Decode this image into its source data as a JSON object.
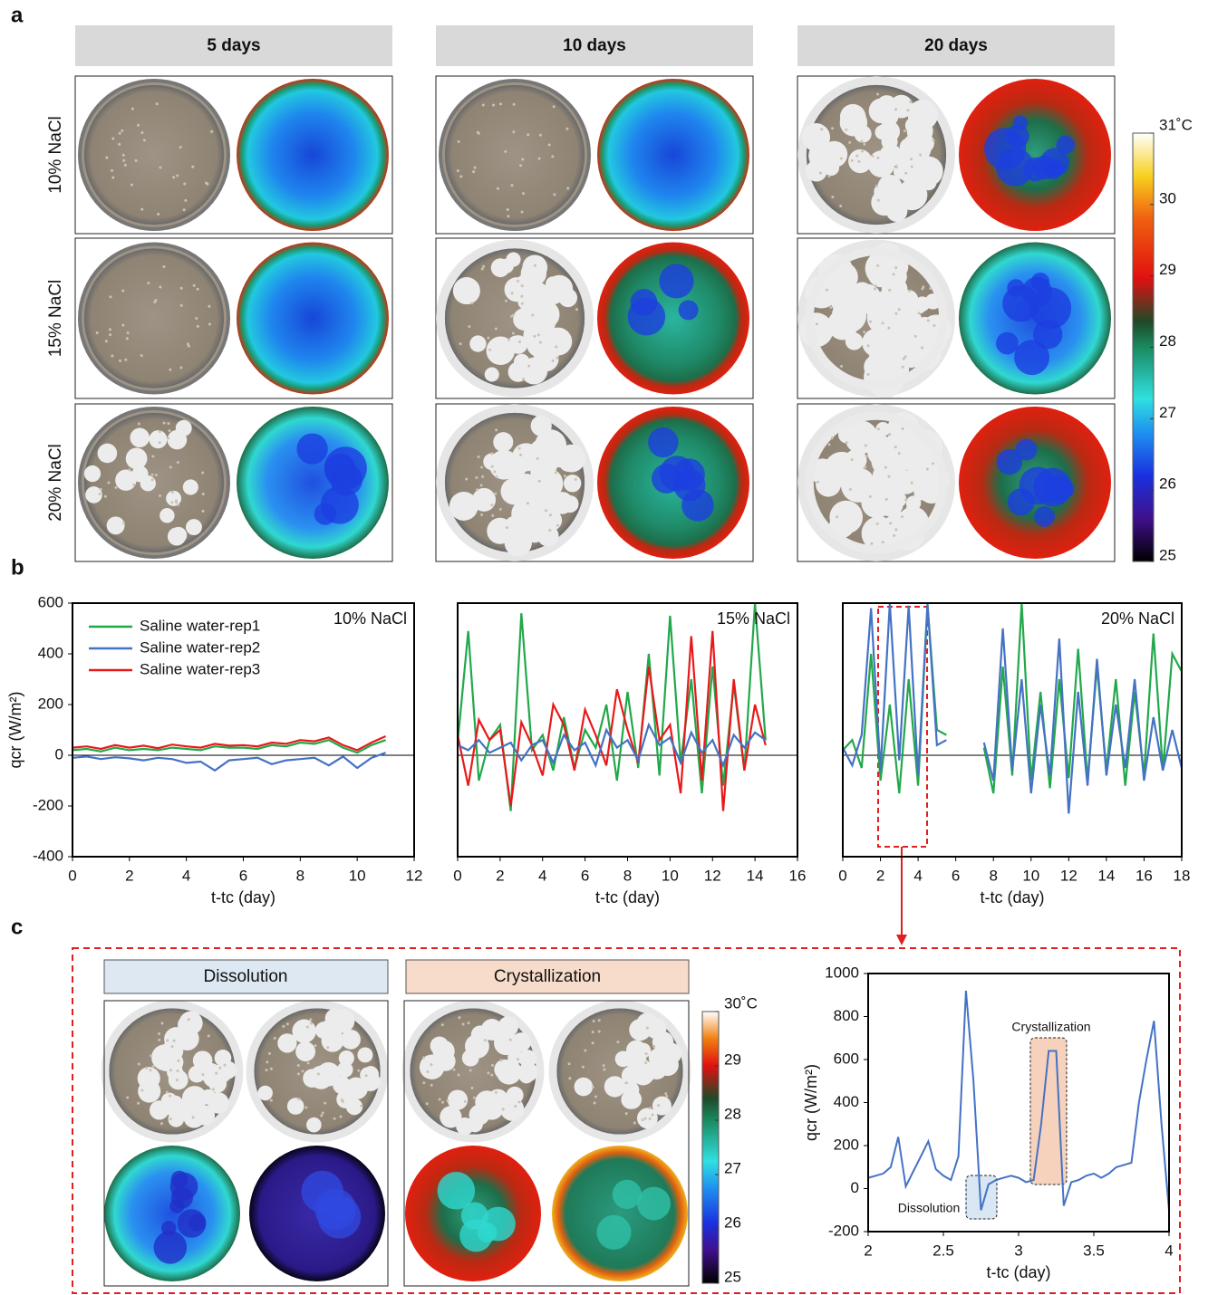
{
  "panel_a": {
    "label": "a",
    "columns": [
      "5 days",
      "10 days",
      "20 days"
    ],
    "rows": [
      "10% NaCl",
      "15% NaCl",
      "20% NaCl"
    ],
    "colorbar": {
      "lim": [
        25,
        31
      ],
      "ticks": [
        25,
        26,
        27,
        28,
        29,
        30,
        {
          "value": 31,
          "label": "31˚C"
        }
      ]
    }
  },
  "panel_b": {
    "label": "b"
  },
  "panel_c": {
    "label": "c",
    "headers": [
      "Dissolution",
      "Crystallization"
    ],
    "colorbar": {
      "lim": [
        25,
        30
      ],
      "ticks": [
        25,
        26,
        27,
        28,
        29,
        {
          "value": 30,
          "label": "30˚C"
        }
      ]
    }
  },
  "chart_data": [
    {
      "type": "line",
      "annotation": "10% NaCl",
      "legend": "upper left",
      "x": [
        0,
        0.5,
        1,
        1.5,
        2,
        2.5,
        3,
        3.5,
        4,
        4.5,
        5,
        5.5,
        6,
        6.5,
        7,
        7.5,
        8,
        8.5,
        9,
        9.5,
        10,
        10.5,
        11
      ],
      "series": [
        {
          "name": "Saline water-rep1",
          "color": "#22a84a",
          "values": [
            20,
            25,
            15,
            30,
            20,
            25,
            20,
            30,
            25,
            20,
            35,
            30,
            30,
            25,
            40,
            35,
            50,
            45,
            60,
            30,
            10,
            40,
            60
          ]
        },
        {
          "name": "Saline water-rep2",
          "color": "#4472c4",
          "values": [
            -10,
            -5,
            -15,
            -8,
            -12,
            -20,
            -10,
            -15,
            -30,
            -25,
            -60,
            -20,
            -15,
            -10,
            -35,
            -20,
            -15,
            -10,
            -40,
            -5,
            -50,
            -10,
            10
          ]
        },
        {
          "name": "Saline water-rep3",
          "color": "#e8191b",
          "values": [
            30,
            35,
            25,
            40,
            30,
            38,
            28,
            42,
            35,
            30,
            45,
            38,
            40,
            35,
            50,
            45,
            60,
            55,
            70,
            40,
            20,
            50,
            75
          ]
        }
      ],
      "xlim": [
        0,
        12
      ],
      "xticks": [
        0,
        2,
        4,
        6,
        8,
        10,
        12
      ],
      "ylim": [
        -400,
        600
      ],
      "yticks": [
        -400,
        -200,
        0,
        200,
        400,
        600
      ],
      "x_label": "t-tc (day)",
      "y_label": "qcr (W/m²)"
    },
    {
      "type": "line",
      "annotation": "15% NaCl",
      "x": [
        0,
        0.5,
        1,
        1.5,
        2,
        2.5,
        3,
        3.5,
        4,
        4.5,
        5,
        5.5,
        6,
        6.5,
        7,
        7.5,
        8,
        8.5,
        9,
        9.5,
        10,
        10.5,
        11,
        11.5,
        12,
        12.5,
        13,
        13.5,
        14,
        14.5
      ],
      "series": [
        {
          "color": "#22a84a",
          "values": [
            50,
            490,
            -100,
            60,
            120,
            -220,
            560,
            20,
            80,
            -60,
            150,
            -50,
            100,
            30,
            200,
            -100,
            250,
            -50,
            400,
            -80,
            550,
            -30,
            300,
            -150,
            350,
            -120,
            280,
            -60,
            600,
            60
          ]
        },
        {
          "color": "#e8191b",
          "values": [
            80,
            -120,
            140,
            60,
            100,
            -200,
            130,
            40,
            -80,
            200,
            120,
            -60,
            180,
            80,
            -40,
            260,
            100,
            -30,
            350,
            60,
            120,
            -150,
            470,
            -100,
            490,
            -220,
            300,
            -60,
            200,
            40
          ]
        },
        {
          "color": "#4472c4",
          "values": [
            40,
            20,
            60,
            10,
            30,
            50,
            -20,
            40,
            60,
            -30,
            80,
            20,
            50,
            -40,
            100,
            30,
            60,
            -20,
            120,
            40,
            70,
            -30,
            90,
            10,
            60,
            -40,
            80,
            30,
            90,
            60
          ]
        }
      ],
      "xlim": [
        0,
        16
      ],
      "xticks": [
        0,
        2,
        4,
        6,
        8,
        10,
        12,
        14,
        16
      ],
      "ylim": [
        -400,
        600
      ],
      "x_label": "t-tc (day)"
    },
    {
      "type": "line",
      "annotation": "20% NaCl",
      "x": [
        0,
        0.5,
        1,
        1.5,
        2,
        2.5,
        3,
        3.5,
        4,
        4.5,
        5,
        5.5,
        6,
        6.5,
        7,
        7.5,
        8,
        8.5,
        9,
        9.5,
        10,
        10.5,
        11,
        11.5,
        12,
        12.5,
        13,
        13.5,
        14,
        14.5,
        15,
        15.5,
        16,
        16.5,
        17,
        17.5,
        18
      ],
      "series": [
        {
          "color": "#22a84a",
          "values": [
            20,
            60,
            -50,
            400,
            -100,
            200,
            -150,
            300,
            -120,
            590,
            100,
            80,
            null,
            null,
            null,
            30,
            -150,
            350,
            -80,
            600,
            -100,
            250,
            -130,
            300,
            -90,
            420,
            -100,
            350,
            -60,
            300,
            -120,
            250,
            -80,
            480,
            -60,
            400,
            330
          ]
        },
        {
          "color": "#4472c4",
          "values": [
            30,
            -40,
            80,
            580,
            -60,
            600,
            -20,
            590,
            -80,
            600,
            40,
            60,
            null,
            null,
            null,
            50,
            -100,
            500,
            -60,
            300,
            -150,
            200,
            -80,
            460,
            -230,
            250,
            -120,
            380,
            -80,
            200,
            -50,
            300,
            -100,
            150,
            -60,
            100,
            -50
          ]
        }
      ],
      "xlim": [
        0,
        18
      ],
      "xticks": [
        0,
        2,
        4,
        6,
        8,
        10,
        12,
        14,
        16,
        18
      ],
      "ylim": [
        -400,
        600
      ],
      "x_label": "t-tc (day)"
    },
    {
      "type": "line",
      "annotations": [
        "Crystallization",
        "Dissolution"
      ],
      "x": [
        2,
        2.05,
        2.1,
        2.15,
        2.2,
        2.25,
        2.3,
        2.35,
        2.4,
        2.45,
        2.5,
        2.55,
        2.6,
        2.65,
        2.7,
        2.75,
        2.8,
        2.85,
        2.9,
        2.95,
        3,
        3.05,
        3.1,
        3.15,
        3.2,
        3.25,
        3.3,
        3.35,
        3.4,
        3.45,
        3.5,
        3.55,
        3.6,
        3.65,
        3.7,
        3.75,
        3.8,
        3.85,
        3.9,
        3.95,
        4
      ],
      "series": [
        {
          "color": "#4472c4",
          "values": [
            50,
            60,
            70,
            100,
            240,
            10,
            80,
            150,
            220,
            90,
            60,
            40,
            150,
            920,
            500,
            -100,
            20,
            40,
            50,
            60,
            50,
            30,
            40,
            300,
            640,
            640,
            -80,
            30,
            40,
            60,
            70,
            50,
            70,
            100,
            110,
            120,
            400,
            600,
            780,
            300,
            -100
          ]
        }
      ],
      "xlim": [
        2,
        4
      ],
      "xticks": [
        2,
        2.5,
        3,
        3.5,
        4
      ],
      "ylim": [
        -200,
        1000
      ],
      "yticks": [
        -200,
        0,
        200,
        400,
        600,
        800,
        1000
      ],
      "x_label": "t-tc (day)",
      "y_label": "qcr (W/m²)"
    }
  ]
}
